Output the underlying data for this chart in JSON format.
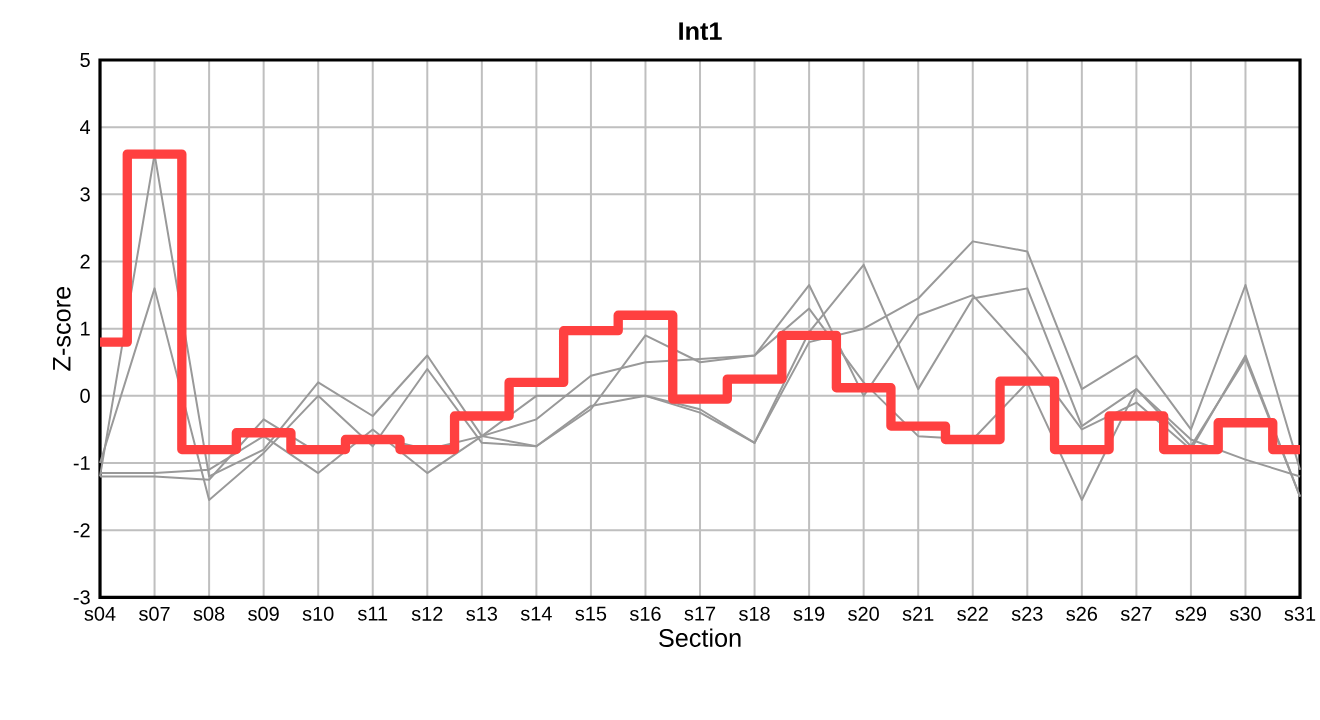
{
  "chart_data": {
    "type": "line",
    "title": "Int1",
    "xlabel": "Section",
    "ylabel": "Z-score",
    "categories": [
      "s04",
      "s07",
      "s08",
      "s09",
      "s10",
      "s11",
      "s12",
      "s13",
      "s14",
      "s15",
      "s16",
      "s17",
      "s18",
      "s19",
      "s20",
      "s21",
      "s22",
      "s23",
      "s26",
      "s27",
      "s29",
      "s30",
      "s31"
    ],
    "ylim": [
      -3,
      5
    ],
    "yticks": [
      -3,
      -2,
      -1,
      0,
      1,
      2,
      3,
      4,
      5
    ],
    "grid": true,
    "series": [
      {
        "color": "#999999",
        "values": [
          -1.2,
          3.6,
          -1.2,
          -0.8,
          0.2,
          -0.3,
          0.6,
          -0.6,
          -0.75,
          -0.2,
          0.9,
          0.5,
          0.6,
          1.65,
          0.0,
          1.2,
          1.5,
          0.6,
          -0.5,
          -0.1,
          -0.8,
          0.6,
          -1.5
        ]
      },
      {
        "color": "#999999",
        "values": [
          -1.0,
          1.6,
          -1.55,
          -0.85,
          0.0,
          -0.75,
          0.4,
          -0.7,
          -0.75,
          -0.15,
          0.0,
          -0.25,
          -0.7,
          0.95,
          1.95,
          0.1,
          1.45,
          1.6,
          -0.45,
          0.1,
          -0.75,
          0.55,
          -1.5
        ]
      },
      {
        "color": "#999999",
        "values": [
          -1.2,
          -1.2,
          -1.25,
          -0.35,
          -0.85,
          -0.6,
          -0.8,
          -0.6,
          0.0,
          0.0,
          0.0,
          -0.2,
          -0.7,
          0.8,
          1.0,
          1.45,
          2.3,
          2.15,
          0.1,
          0.6,
          -0.5,
          1.65,
          -1.1
        ]
      },
      {
        "color": "#999999",
        "values": [
          -1.15,
          -1.15,
          -1.1,
          -0.6,
          -1.15,
          -0.5,
          -1.15,
          -0.6,
          -0.35,
          0.3,
          0.5,
          0.55,
          0.6,
          1.3,
          0.2,
          -0.6,
          -0.65,
          0.2,
          -1.55,
          0.1,
          -0.65,
          -0.95,
          -1.2
        ]
      },
      {
        "type": "step",
        "color": "#ff4040",
        "values": [
          0.8,
          3.6,
          -0.8,
          -0.55,
          -0.8,
          -0.65,
          -0.8,
          -0.3,
          0.2,
          0.97,
          1.2,
          -0.05,
          0.25,
          0.9,
          0.12,
          -0.45,
          -0.65,
          0.22,
          -0.8,
          -0.3,
          -0.8,
          -0.4,
          -0.8
        ]
      }
    ]
  }
}
